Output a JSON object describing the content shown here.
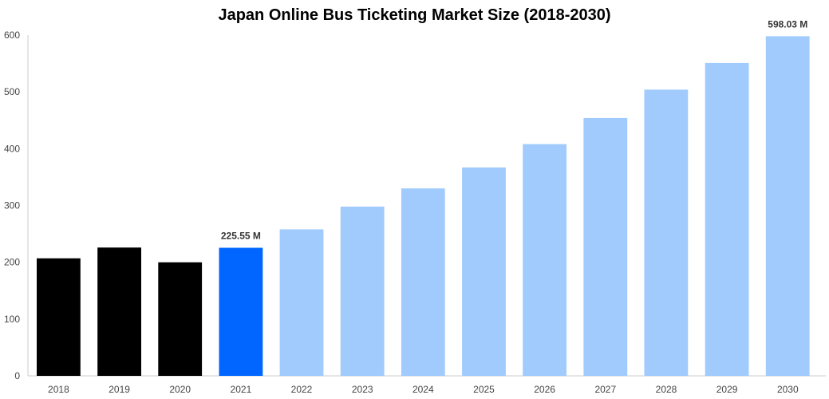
{
  "chart_data": {
    "type": "bar",
    "title": "Japan Online Bus Ticketing Market Size (2018-2030)",
    "xlabel": "",
    "ylabel": "",
    "ylim": [
      0,
      600
    ],
    "yticks": [
      0,
      100,
      200,
      300,
      400,
      500,
      600
    ],
    "grid": false,
    "legend": "none",
    "categories": [
      "2018",
      "2019",
      "2020",
      "2021",
      "2022",
      "2023",
      "2024",
      "2025",
      "2026",
      "2027",
      "2028",
      "2029",
      "2030"
    ],
    "values": [
      207,
      226,
      200,
      225.55,
      258,
      298,
      330,
      367,
      408,
      454,
      504,
      551,
      598.03
    ],
    "bar_colors": [
      "#000000",
      "#000000",
      "#000000",
      "#0066ff",
      "#a0cbfc",
      "#a0cbfc",
      "#a0cbfc",
      "#a0cbfc",
      "#a0cbfc",
      "#a0cbfc",
      "#a0cbfc",
      "#a0cbfc",
      "#a0cbfc"
    ],
    "annotations": [
      {
        "category": "2021",
        "text": "225.55 M"
      },
      {
        "category": "2030",
        "text": "598.03 M"
      }
    ]
  }
}
